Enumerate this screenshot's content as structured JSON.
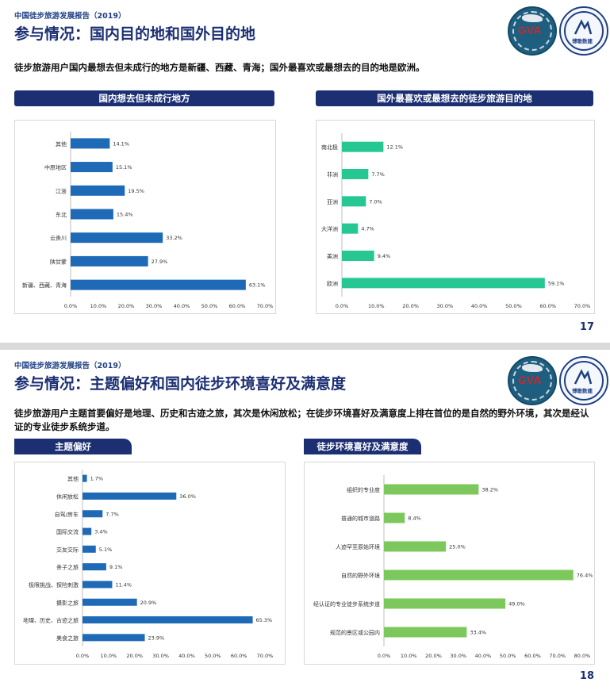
{
  "slide1": {
    "report": "中国徒步旅游发展报告（2019）",
    "title": "参与情况：国内目的地和国外目的地",
    "desc": "徒步旅游用户国内最想去但未成行的地方是新疆、西藏、青海；国外最喜欢或最想去的目的地是欧洲。",
    "left_header": "国内想去但未成行地方",
    "right_header": "国外最喜欢或最想去的徒步旅游目的地",
    "page": "17"
  },
  "slide2": {
    "report": "中国徒步旅游发展报告（2019）",
    "title": "参与情况：主题偏好和国内徒步环境喜好及满意度",
    "desc": "徒步旅游用户主题首要偏好是地理、历史和古迹之旅，其次是休闲放松；在徒步环境喜好及满意度上排在首位的是自然的野外环境，其次是经认证的专业徒步系统步道。",
    "left_header": "主题偏好",
    "right_header": "徒步环境喜好及满意度",
    "page": "18"
  },
  "logos": {
    "logo1_text": "GVA",
    "logo2_text": "博歌数建"
  },
  "colors": {
    "navy": "#1c2f73",
    "blue_bar": "#1f6ab7",
    "teal_bar": "#27c794",
    "green_bar": "#7cc85c"
  },
  "chart_data": [
    {
      "id": "domestic",
      "type": "bar",
      "orientation": "horizontal",
      "categories": [
        "其他",
        "中原地区",
        "江浙",
        "东北",
        "云贵川",
        "陕甘蒙",
        "新疆、西藏、青海"
      ],
      "values": [
        14.1,
        15.1,
        19.5,
        15.4,
        33.2,
        27.9,
        63.1
      ],
      "labels": [
        "14.1%",
        "15.1%",
        "19.5%",
        "15.4%",
        "33.2%",
        "27.9%",
        "63.1%"
      ],
      "ticks": [
        "0.0%",
        "10.0%",
        "20.0%",
        "30.0%",
        "40.0%",
        "50.0%",
        "60.0%",
        "70.0%"
      ],
      "xlim": [
        0,
        70
      ]
    },
    {
      "id": "foreign",
      "type": "bar",
      "orientation": "horizontal",
      "categories": [
        "南北极",
        "非洲",
        "亚洲",
        "大洋洲",
        "美洲",
        "欧洲"
      ],
      "values": [
        12.1,
        7.7,
        7.0,
        4.7,
        9.4,
        59.1
      ],
      "labels": [
        "12.1%",
        "7.7%",
        "7.0%",
        "4.7%",
        "9.4%",
        "59.1%"
      ],
      "ticks": [
        "0.0%",
        "10.0%",
        "20.0%",
        "30.0%",
        "40.0%",
        "50.0%",
        "60.0%",
        "70.0%"
      ],
      "xlim": [
        0,
        70
      ]
    },
    {
      "id": "theme",
      "type": "bar",
      "orientation": "horizontal",
      "categories": [
        "其他",
        "休闲放松",
        "自驾/房车",
        "国际交流",
        "交友交际",
        "亲子之旅",
        "极限挑战、探险刺激",
        "摄影之旅",
        "地理、历史、古迹之旅",
        "美食之旅"
      ],
      "values": [
        1.7,
        36.0,
        7.7,
        3.4,
        5.1,
        9.1,
        11.4,
        20.9,
        65.3,
        23.9
      ],
      "labels": [
        "1.7%",
        "36.0%",
        "7.7%",
        "3.4%",
        "5.1%",
        "9.1%",
        "11.4%",
        "20.9%",
        "65.3%",
        "23.9%"
      ],
      "ticks": [
        "0.0%",
        "10.0%",
        "20.0%",
        "30.0%",
        "40.0%",
        "50.0%",
        "60.0%",
        "70.0%"
      ],
      "xlim": [
        0,
        70
      ]
    },
    {
      "id": "environment",
      "type": "bar",
      "orientation": "horizontal",
      "categories": [
        "组织的专业度",
        "普通的城市道路",
        "人迹罕至原始环境",
        "自然的野外环境",
        "经认证的专业徒步系统步道",
        "规范的景区或公园内"
      ],
      "values": [
        38.2,
        8.4,
        25.0,
        76.4,
        49.0,
        33.4
      ],
      "labels": [
        "38.2%",
        "8.4%",
        "25.0%",
        "76.4%",
        "49.0%",
        "33.4%"
      ],
      "ticks": [
        "0.0%",
        "10.0%",
        "20.0%",
        "30.0%",
        "40.0%",
        "50.0%",
        "60.0%",
        "70.0%",
        "80.0%"
      ],
      "xlim": [
        0,
        80
      ]
    }
  ]
}
